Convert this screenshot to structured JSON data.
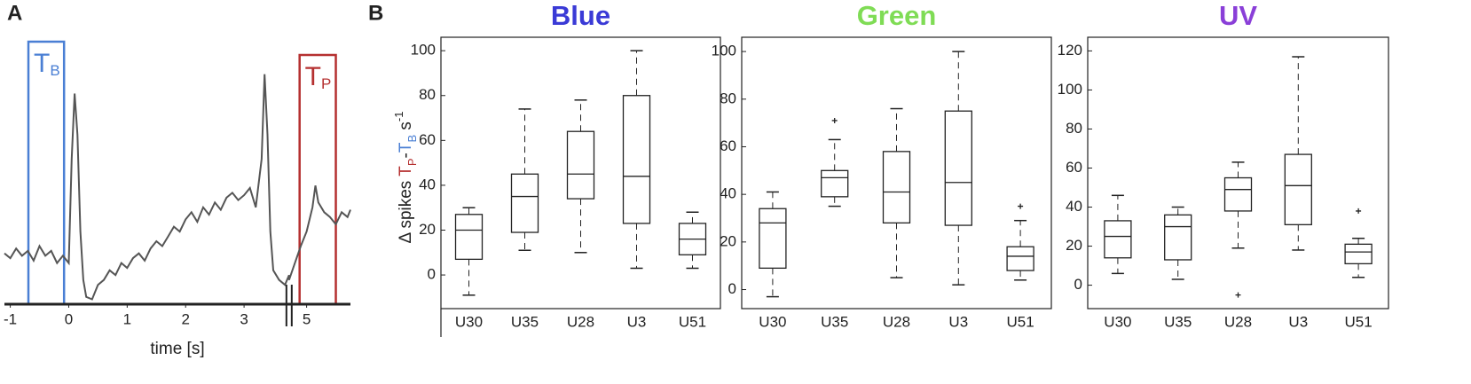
{
  "chart_data": [
    {
      "type": "line",
      "panel_label": "A",
      "color": "#555555",
      "x_label": "time [s]",
      "x": [
        -1.1,
        -1.0,
        -0.9,
        -0.8,
        -0.7,
        -0.6,
        -0.5,
        -0.4,
        -0.3,
        -0.2,
        -0.1,
        0,
        0.05,
        0.1,
        0.15,
        0.2,
        0.25,
        0.3,
        0.4,
        0.5,
        0.6,
        0.7,
        0.8,
        0.9,
        1.0,
        1.1,
        1.2,
        1.3,
        1.4,
        1.5,
        1.6,
        1.7,
        1.8,
        1.9,
        2.0,
        2.1,
        2.2,
        2.3,
        2.4,
        2.5,
        2.6,
        2.7,
        2.8,
        2.9,
        3.0,
        3.1,
        3.2,
        3.3,
        3.35,
        3.4,
        3.45,
        3.5,
        3.6,
        3.7,
        3.77,
        4.7,
        4.8,
        4.9,
        5.0,
        5.1,
        5.15,
        5.2,
        5.3,
        5.4,
        5.5,
        5.6,
        5.7,
        5.75
      ],
      "values": [
        21,
        19,
        23,
        20,
        22,
        18,
        24,
        20,
        22,
        17,
        20,
        17,
        60,
        87,
        70,
        30,
        10,
        3,
        2,
        8,
        10,
        14,
        12,
        17,
        15,
        19,
        21,
        18,
        23,
        26,
        24,
        28,
        32,
        30,
        35,
        38,
        34,
        40,
        37,
        42,
        39,
        44,
        46,
        43,
        45,
        48,
        40,
        60,
        95,
        70,
        30,
        14,
        10,
        8,
        12,
        10,
        17,
        24,
        30,
        40,
        49,
        42,
        38,
        36,
        33,
        38,
        36,
        39
      ],
      "xlim": [
        -1.1,
        5.75
      ],
      "x_break": [
        3.77,
        4.7
      ],
      "ylim": [
        0,
        100
      ],
      "xticks": [
        -1,
        0,
        1,
        2,
        3,
        5
      ],
      "windows": [
        {
          "label": "T",
          "subscript": "B",
          "start": -0.69,
          "end": -0.08,
          "color": "#4a7fd4"
        },
        {
          "label": "T",
          "subscript": "P",
          "start": 4.88,
          "end": 5.5,
          "color": "#b53030"
        }
      ]
    },
    {
      "type": "box",
      "panel_label": "B",
      "title": "Blue",
      "title_color": "#3a3ad6",
      "y_label_parts": [
        {
          "text": "Δ spikes ",
          "color": "#222222",
          "shift": "none"
        },
        {
          "text": "T",
          "color": "#b53030",
          "shift": "none"
        },
        {
          "text": "P",
          "color": "#b53030",
          "shift": "sub"
        },
        {
          "text": "-",
          "color": "#222222",
          "shift": "none"
        },
        {
          "text": "T",
          "color": "#4a7fd4",
          "shift": "none"
        },
        {
          "text": "B",
          "color": "#4a7fd4",
          "shift": "sub"
        },
        {
          "text": " s",
          "color": "#222222",
          "shift": "none"
        },
        {
          "text": "-1",
          "color": "#222222",
          "shift": "super"
        }
      ],
      "categories": [
        "U30",
        "U35",
        "U28",
        "U3",
        "U51"
      ],
      "boxes": [
        {
          "min": -9,
          "q1": 7,
          "median": 20,
          "q3": 27,
          "max": 30
        },
        {
          "min": 11,
          "q1": 19,
          "median": 35,
          "q3": 45,
          "max": 74
        },
        {
          "min": 10,
          "q1": 34,
          "median": 45,
          "q3": 64,
          "max": 78
        },
        {
          "min": 3,
          "q1": 23,
          "median": 44,
          "q3": 80,
          "max": 100
        },
        {
          "min": 3,
          "q1": 9,
          "median": 16,
          "q3": 23,
          "max": 28
        }
      ],
      "ylim": [
        -15,
        106
      ],
      "yticks": [
        0,
        20,
        40,
        60,
        80,
        100
      ]
    },
    {
      "type": "box",
      "title": "Green",
      "title_color": "#7fdc55",
      "categories": [
        "U30",
        "U35",
        "U28",
        "U3",
        "U51"
      ],
      "boxes": [
        {
          "min": -3,
          "q1": 9,
          "median": 28,
          "q3": 34,
          "max": 41
        },
        {
          "min": 35,
          "q1": 39,
          "median": 47,
          "q3": 50,
          "max": 63,
          "outliers": [
            71
          ]
        },
        {
          "min": 5,
          "q1": 28,
          "median": 41,
          "q3": 58,
          "max": 76
        },
        {
          "min": 2,
          "q1": 27,
          "median": 45,
          "q3": 75,
          "max": 100
        },
        {
          "min": 4,
          "q1": 8,
          "median": 14,
          "q3": 18,
          "max": 29,
          "outliers": [
            35
          ]
        }
      ],
      "ylim": [
        -8,
        106
      ],
      "yticks": [
        0,
        20,
        40,
        60,
        80,
        100
      ]
    },
    {
      "type": "box",
      "title": "UV",
      "title_color": "#8a3fd8",
      "categories": [
        "U30",
        "U35",
        "U28",
        "U3",
        "U51"
      ],
      "boxes": [
        {
          "min": 6,
          "q1": 14,
          "median": 25,
          "q3": 33,
          "max": 46
        },
        {
          "min": 3,
          "q1": 13,
          "median": 30,
          "q3": 36,
          "max": 40
        },
        {
          "min": 19,
          "q1": 38,
          "median": 49,
          "q3": 55,
          "max": 63,
          "outliers": [
            -5
          ]
        },
        {
          "min": 18,
          "q1": 31,
          "median": 51,
          "q3": 67,
          "max": 117
        },
        {
          "min": 4,
          "q1": 11,
          "median": 17,
          "q3": 21,
          "max": 24,
          "outliers": [
            38
          ]
        }
      ],
      "ylim": [
        -12,
        127
      ],
      "yticks": [
        0,
        20,
        40,
        60,
        80,
        100,
        120
      ]
    }
  ]
}
